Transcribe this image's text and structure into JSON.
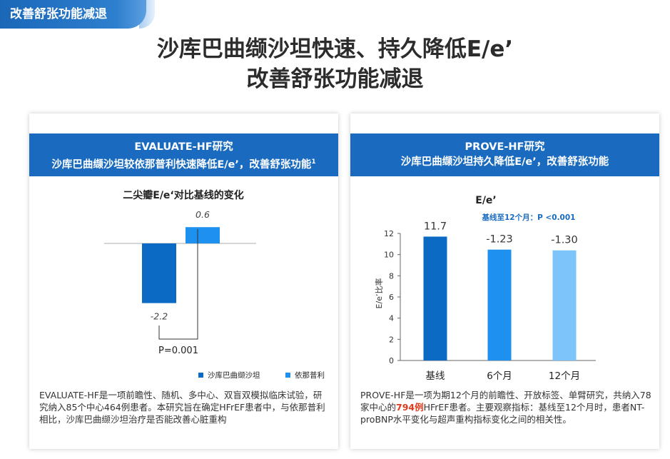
{
  "tag": {
    "label": "改善舒张功能减退"
  },
  "title": {
    "line1": "沙库巴曲缬沙坦快速、持久降低E/e’",
    "line2": "改善舒张功能减退"
  },
  "left_panel": {
    "header_line1": "EVALUATE-HF研究",
    "header_line2": "沙库巴曲缬沙坦较依那普利快速降低E/e’，改善舒张功能",
    "header_sup": "1",
    "chart_title": "二尖瓣E/e‘对比基线的变化",
    "p_value": "P=0.001",
    "description": "EVALUATE-HF是一项前瞻性、随机、多中心、双盲双模拟临床试验，研究纳入85个中心464例患者。本研究旨在确定HFrEF患者中，与依那普利相比，沙库巴曲缬沙坦治疗是否能改善心脏重构"
  },
  "right_panel": {
    "header_line1": "PROVE-HF研究",
    "header_line2": "沙库巴曲缬沙坦持久降低E/e’，改善舒张功能",
    "chart_title": "E/e’",
    "chart_subtitle": "基线至12个月：P <0.001",
    "y_axis_label": "E/e’比率",
    "desc_part1": "PROVE-HF是一项为期12个月的前瞻性、开放标签、单臂研究，共纳入78家中心的",
    "desc_highlight": "794例",
    "desc_part2": "HFrEF患者。主要观察指标：基线至12个月时，患者NT-proBNP水平变化与超声重构指标变化之间的相关性。"
  },
  "colors": {
    "header_blue": "#1a6bc0",
    "bar_dark": "#0b6bc4",
    "bar_mid": "#1e90f0",
    "bar_light": "#7cc4fa",
    "highlight": "#e03b1c"
  },
  "chart_data": [
    {
      "type": "bar",
      "title": "二尖瓣E/e‘对比基线的变化",
      "series": [
        {
          "name": "沙库巴曲缬沙坦",
          "value": -2.2,
          "label": "-2.2",
          "color": "#0b6bc4"
        },
        {
          "name": "依那普利",
          "value": 0.6,
          "label": "0.6",
          "color": "#1e90f0"
        }
      ],
      "annotation": "P=0.001",
      "ylim": [
        -2.4,
        1.0
      ],
      "legend": "bottom-right"
    },
    {
      "type": "bar",
      "title": "E/e’",
      "subtitle": "基线至12个月：P <0.001",
      "ylabel": "E/e’比率",
      "categories": [
        "基线",
        "6个月",
        "12个月"
      ],
      "values": [
        11.7,
        10.47,
        10.4
      ],
      "data_labels": [
        "11.7",
        "-1.23",
        "-1.30"
      ],
      "colors": [
        "#0b6bc4",
        "#1e90f0",
        "#7cc4fa"
      ],
      "ylim": [
        0,
        12
      ],
      "yticks": [
        "0",
        "2",
        "4",
        "6",
        "8",
        "10",
        "12"
      ],
      "grid": false
    }
  ]
}
